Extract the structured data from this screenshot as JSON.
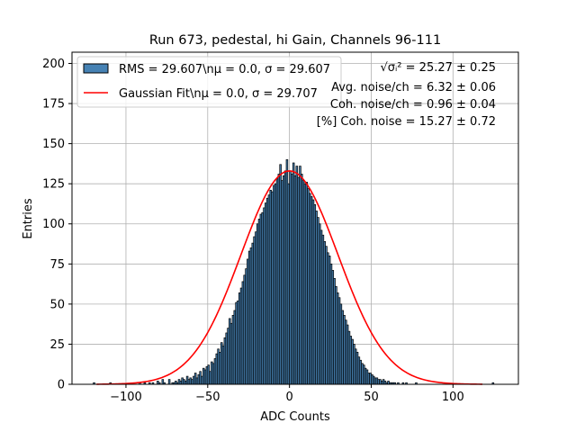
{
  "chart_data": {
    "type": "bar",
    "title": "Run 673, pedestal, hi Gain, Channels 96-111",
    "xlabel": "ADC Counts",
    "ylabel": "Entries",
    "xlim": [
      -133,
      140
    ],
    "ylim": [
      0,
      207
    ],
    "xticks": [
      -100,
      -50,
      0,
      50,
      100
    ],
    "yticks": [
      0,
      25,
      50,
      75,
      100,
      125,
      150,
      175,
      200
    ],
    "grid": true,
    "legend_position": "top-left",
    "legend": [
      {
        "label": "RMS = 29.607\\nμ = 0.0, σ = 29.607",
        "kind": "patch",
        "color": "#4682b4"
      },
      {
        "label": "Gaussian Fit\\nμ = 0.0, σ = 29.707",
        "kind": "line",
        "color": "#ff0000"
      }
    ],
    "annotations": [
      "√σᵢ² = 25.27 ± 0.25",
      "Avg. noise/ch = 6.32 ± 0.06",
      "Coh. noise/ch = 0.96 ± 0.04",
      "[%] Coh. noise = 15.27 ± 0.72"
    ],
    "bin_range": [
      -120,
      135
    ],
    "bin_width": 1,
    "values": [
      1,
      0,
      0,
      0,
      0,
      0,
      0,
      0,
      0,
      0,
      1,
      0,
      0,
      0,
      0,
      0,
      0,
      0,
      0,
      0,
      0,
      0,
      0,
      0,
      0,
      0,
      0,
      0,
      1,
      0,
      0,
      1,
      0,
      0,
      1,
      0,
      1,
      0,
      0,
      2,
      1,
      0,
      3,
      1,
      0,
      0,
      3,
      0,
      1,
      1,
      2,
      1,
      3,
      2,
      4,
      3,
      2,
      5,
      3,
      4,
      3,
      5,
      7,
      4,
      6,
      8,
      5,
      10,
      9,
      11,
      12,
      8,
      14,
      13,
      16,
      19,
      22,
      20,
      26,
      24,
      29,
      32,
      35,
      41,
      38,
      43,
      46,
      51,
      52,
      57,
      60,
      64,
      68,
      72,
      78,
      83,
      85,
      88,
      92,
      95,
      100,
      103,
      106,
      107,
      110,
      113,
      116,
      118,
      121,
      120,
      124,
      125,
      128,
      131,
      137,
      127,
      130,
      133,
      140,
      125,
      133,
      131,
      138,
      130,
      136,
      129,
      136,
      131,
      127,
      125,
      126,
      122,
      119,
      117,
      115,
      112,
      108,
      104,
      100,
      96,
      93,
      89,
      86,
      82,
      80,
      75,
      71,
      66,
      61,
      57,
      54,
      50,
      46,
      43,
      40,
      37,
      33,
      30,
      28,
      25,
      22,
      20,
      17,
      15,
      13,
      12,
      10,
      9,
      7,
      7,
      6,
      5,
      4,
      4,
      3,
      3,
      2,
      3,
      2,
      1,
      2,
      1,
      1,
      1,
      1,
      0,
      1,
      0,
      0,
      1,
      0,
      1,
      0,
      0,
      0,
      0,
      0,
      1,
      0,
      0,
      0,
      0,
      0,
      0,
      0,
      0,
      0,
      0,
      0,
      0,
      0,
      0,
      0,
      0,
      0,
      0,
      0,
      0,
      0,
      0,
      0,
      0,
      0,
      0,
      0,
      0,
      0,
      0,
      0,
      0,
      0,
      0,
      0,
      0,
      0,
      0,
      0,
      0,
      0,
      0,
      0,
      0,
      0,
      0,
      1
    ],
    "fit": {
      "mu": 0.0,
      "sigma": 29.707,
      "amplitude": 133
    }
  }
}
